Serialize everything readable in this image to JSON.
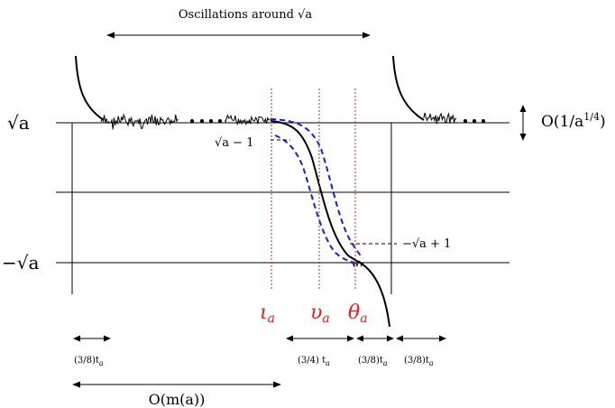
{
  "title": "Oscillations around √a",
  "labels": {
    "sqrt_a": "√a",
    "neg_sqrt_a": "−√a",
    "sqrt_a_minus_1": "√a − 1",
    "neg_sqrt_a_plus_1": "−√a + 1",
    "order_label": "O(1/a^{1/4})",
    "order_prefix": "O(1/a",
    "order_exp": "1/4",
    "order_suffix": ")",
    "iota": "ι",
    "upsilon": "υ",
    "theta": "θ",
    "subscript_a": "a",
    "span_38_left": "(3/8)t",
    "span_34": "(3/4) t",
    "span_38_mid": "(3/8)t",
    "span_38_right": "(3/8)t",
    "m_a": "O(m(a))"
  },
  "colors": {
    "curve": "#000000",
    "dashed_band": "#1a1adf",
    "markers": "#e0201a",
    "axes": "#000000"
  }
}
